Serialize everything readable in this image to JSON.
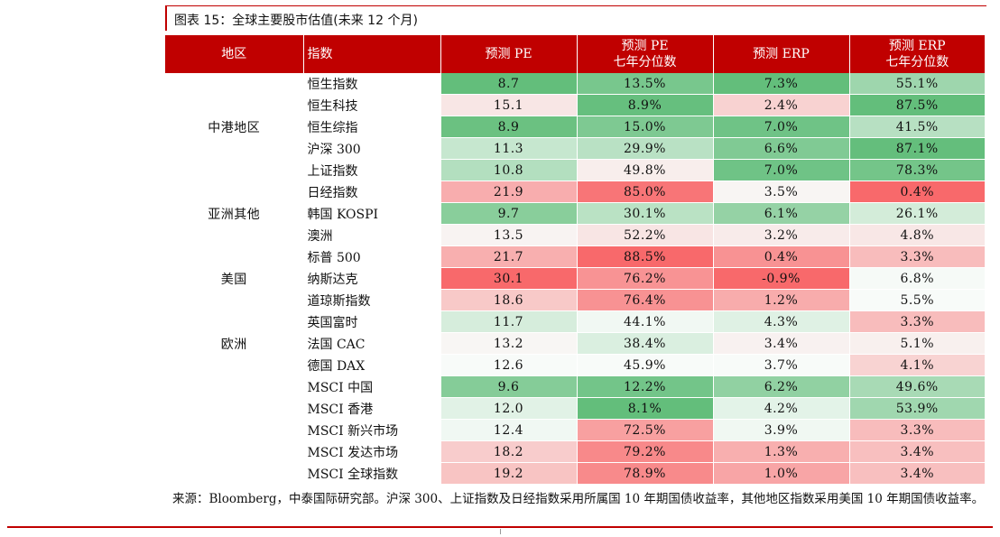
{
  "caption": "图表 15：全球主要股市估值(未来 12 个月)",
  "headers": {
    "region": "地区",
    "index": "指数",
    "pe": "预测 PE",
    "pe_pct_1": "预测 PE",
    "pe_pct_2": "七年分位数",
    "erp": "预测 ERP",
    "erp_pct_1": "预测 ERP",
    "erp_pct_2": "七年分位数"
  },
  "groups": [
    {
      "region": "中港地区",
      "rows": [
        {
          "name": "恒生指数",
          "pe": "8.7",
          "pe_pct": "13.5%",
          "erp": "7.3%",
          "erp_pct": "55.1%"
        },
        {
          "name": "恒生科技",
          "pe": "15.1",
          "pe_pct": "8.9%",
          "erp": "2.4%",
          "erp_pct": "87.5%"
        },
        {
          "name": "恒生综指",
          "pe": "8.9",
          "pe_pct": "15.0%",
          "erp": "7.0%",
          "erp_pct": "41.5%"
        },
        {
          "name": "沪深 300",
          "pe": "11.3",
          "pe_pct": "29.9%",
          "erp": "6.6%",
          "erp_pct": "87.1%"
        },
        {
          "name": "上证指数",
          "pe": "10.8",
          "pe_pct": "49.8%",
          "erp": "7.0%",
          "erp_pct": "78.3%"
        }
      ]
    },
    {
      "region": "亚洲其他",
      "rows": [
        {
          "name": "日经指数",
          "pe": "21.9",
          "pe_pct": "85.0%",
          "erp": "3.5%",
          "erp_pct": "0.4%"
        },
        {
          "name": "韩国 KOSPI",
          "pe": "9.7",
          "pe_pct": "30.1%",
          "erp": "6.1%",
          "erp_pct": "26.1%"
        },
        {
          "name": "澳洲",
          "pe": "13.5",
          "pe_pct": "52.2%",
          "erp": "3.2%",
          "erp_pct": "4.8%"
        }
      ]
    },
    {
      "region": "美国",
      "rows": [
        {
          "name": "标普 500",
          "pe": "21.7",
          "pe_pct": "88.5%",
          "erp": "0.4%",
          "erp_pct": "3.3%"
        },
        {
          "name": "纳斯达克",
          "pe": "30.1",
          "pe_pct": "76.2%",
          "erp": "-0.9%",
          "erp_pct": "6.8%"
        },
        {
          "name": "道琼斯指数",
          "pe": "18.6",
          "pe_pct": "76.4%",
          "erp": "1.2%",
          "erp_pct": "5.5%"
        }
      ]
    },
    {
      "region": "欧洲",
      "rows": [
        {
          "name": "英国富时",
          "pe": "11.7",
          "pe_pct": "44.1%",
          "erp": "4.3%",
          "erp_pct": "3.3%"
        },
        {
          "name": "法国 CAC",
          "pe": "13.2",
          "pe_pct": "38.4%",
          "erp": "3.4%",
          "erp_pct": "5.1%"
        },
        {
          "name": "德国 DAX",
          "pe": "12.6",
          "pe_pct": "45.9%",
          "erp": "3.7%",
          "erp_pct": "4.1%"
        }
      ]
    },
    {
      "region": "",
      "rows": [
        {
          "name": "MSCI 中国",
          "pe": "9.6",
          "pe_pct": "12.2%",
          "erp": "6.2%",
          "erp_pct": "49.6%"
        },
        {
          "name": "MSCI 香港",
          "pe": "12.0",
          "pe_pct": "8.1%",
          "erp": "4.2%",
          "erp_pct": "53.9%"
        },
        {
          "name": "MSCI 新兴市场",
          "pe": "12.4",
          "pe_pct": "72.5%",
          "erp": "3.9%",
          "erp_pct": "3.3%"
        },
        {
          "name": "MSCI 发达市场",
          "pe": "18.2",
          "pe_pct": "79.2%",
          "erp": "1.3%",
          "erp_pct": "3.4%"
        },
        {
          "name": "MSCI 全球指数",
          "pe": "19.2",
          "pe_pct": "78.9%",
          "erp": "1.0%",
          "erp_pct": "3.4%"
        }
      ]
    }
  ],
  "heat_colors": {
    "pe": [
      "#63be7b",
      "#f8fbf9",
      "#f8696b"
    ],
    "pe_pct": [
      "#63be7b",
      "#f8fbf9",
      "#f8696b"
    ],
    "erp": [
      "#f8696b",
      "#f8fbf9",
      "#63be7b"
    ],
    "erp_pct": [
      "#f8696b",
      "#f8fbf9",
      "#63be7b"
    ]
  },
  "source": "来源：Bloomberg，中泰国际研究部。沪深 300、上证指数及日经指数采用所属国 10 年期国债收益率，其他地区指数采用美国 10 年期国债收益率。"
}
